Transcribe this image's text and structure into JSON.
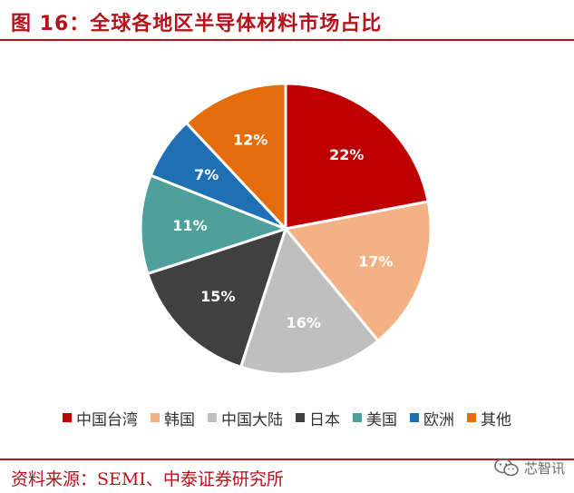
{
  "header": {
    "title": "图 16：全球各地区半导体材料市场占比"
  },
  "chart_data": {
    "type": "pie",
    "title": "",
    "categories": [
      "中国台湾",
      "韩国",
      "中国大陆",
      "日本",
      "美国",
      "欧洲",
      "其他"
    ],
    "values": [
      22,
      17,
      16,
      15,
      11,
      7,
      12
    ],
    "labels": [
      "22%",
      "17%",
      "16%",
      "15%",
      "11%",
      "7%",
      "12%"
    ],
    "colors": [
      "#c00000",
      "#f4b183",
      "#bfbfbf",
      "#404040",
      "#4ea09a",
      "#1f6fb5",
      "#e46c0a"
    ],
    "start_angle_deg": 0,
    "direction": "clockwise",
    "legend_position": "bottom"
  },
  "footer": {
    "source": "资料来源：SEMI、中泰证券研究所"
  },
  "watermark": {
    "text": "芯智讯",
    "icon": "wechat-icon"
  }
}
